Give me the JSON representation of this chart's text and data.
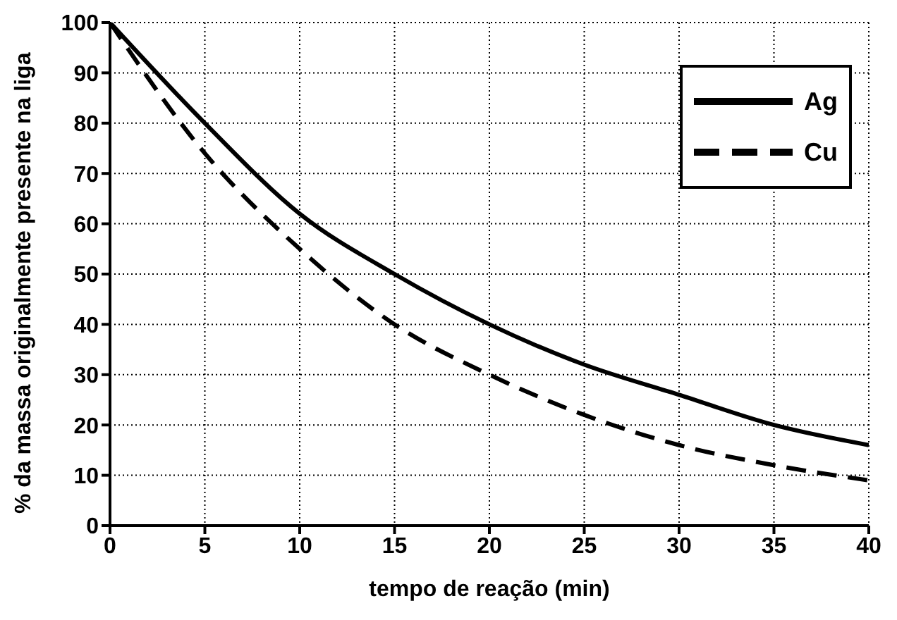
{
  "chart_data": {
    "type": "line",
    "xlabel": "tempo de reação (min)",
    "ylabel": "% da massa originalmente presente na liga",
    "x": [
      0,
      5,
      10,
      15,
      20,
      25,
      30,
      35,
      40
    ],
    "series": [
      {
        "name": "Ag",
        "color": "#000000",
        "line_style": "solid",
        "values": [
          100,
          80,
          62,
          50,
          40,
          32,
          26,
          20,
          16
        ]
      },
      {
        "name": "Cu",
        "color": "#000000",
        "line_style": "dashed",
        "values": [
          100,
          74,
          55,
          40,
          30,
          22,
          16,
          12,
          9
        ]
      }
    ],
    "xlim": [
      0,
      40
    ],
    "xticks": [
      0,
      5,
      10,
      15,
      20,
      25,
      30,
      35,
      40
    ],
    "ylim": [
      0,
      100
    ],
    "yticks": [
      0,
      10,
      20,
      30,
      40,
      50,
      60,
      70,
      80,
      90,
      100
    ],
    "grid": true,
    "legend": "top right",
    "marker": "none"
  }
}
